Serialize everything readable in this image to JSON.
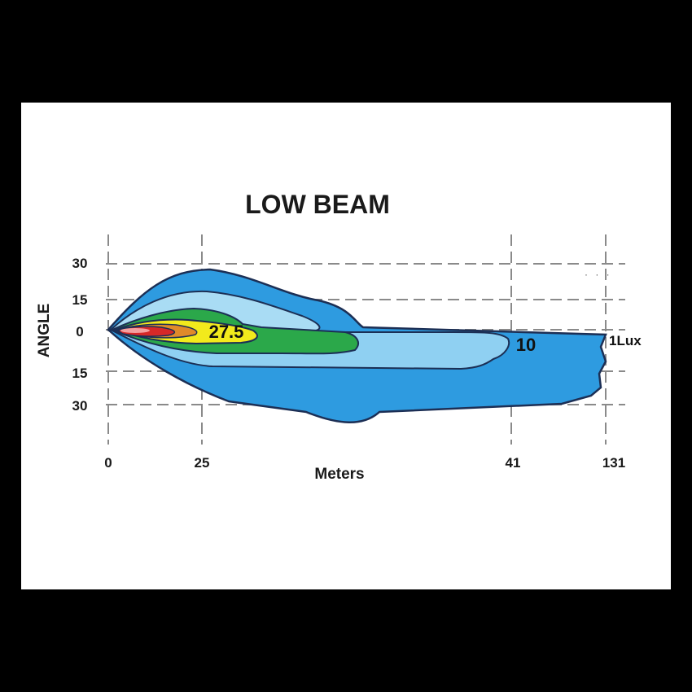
{
  "chart_data": {
    "type": "area",
    "title": "LOW BEAM",
    "xlabel": "Meters",
    "ylabel": "ANGLE",
    "x_ticks": [
      "0",
      "25",
      "41",
      "131"
    ],
    "y_ticks": [
      "30",
      "15",
      "0",
      "15",
      "30"
    ],
    "grid": true,
    "series": [
      {
        "name": "1Lux",
        "reach": "131",
        "color": "#2e9be0"
      },
      {
        "name": "",
        "color": "#a9dcf4"
      },
      {
        "name": "10",
        "reach": "41",
        "color": "#8fd0f2"
      },
      {
        "name": "",
        "color": "#2ba84a"
      },
      {
        "name": "27.5",
        "color": "#f2ea1c"
      },
      {
        "name": "",
        "color": "#e08a2a"
      },
      {
        "name": "",
        "color": "#d62828"
      }
    ]
  },
  "decor": {
    "dots": "· · ·"
  }
}
